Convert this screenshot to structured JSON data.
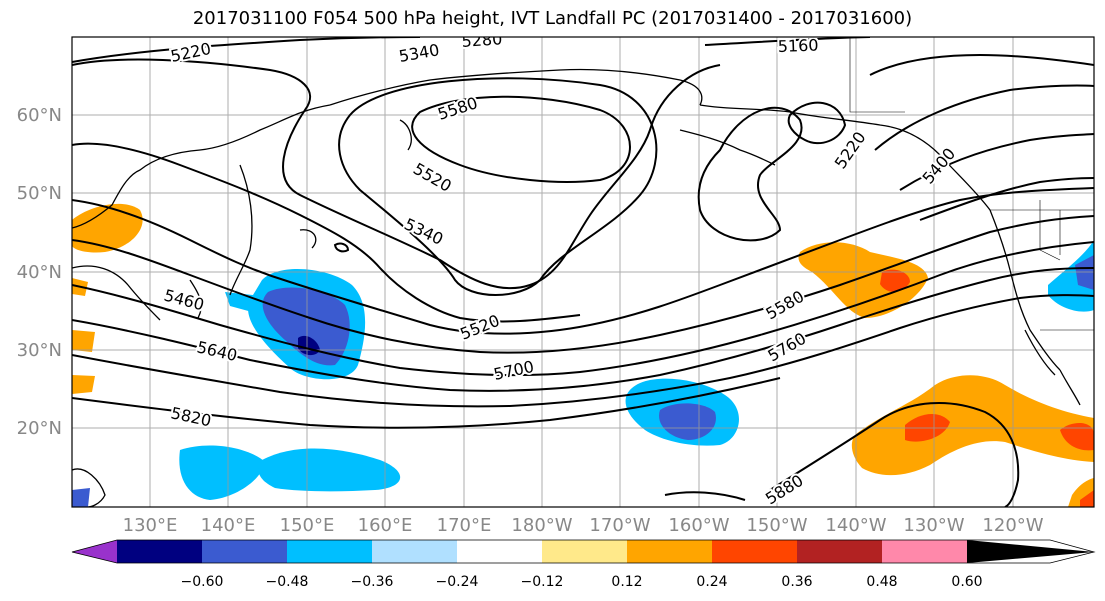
{
  "title": "2017031100 F054 500 hPa height, IVT Landfall PC (2017031400 - 2017031600)",
  "map": {
    "lat_labels": [
      "60°N",
      "50°N",
      "40°N",
      "30°N",
      "20°N"
    ],
    "lon_labels": [
      "130°E",
      "140°E",
      "150°E",
      "160°E",
      "170°E",
      "180°W",
      "170°W",
      "160°W",
      "150°W",
      "140°W",
      "130°W",
      "120°W"
    ],
    "contour_labels": [
      "5220",
      "5280",
      "5340",
      "5580",
      "5520",
      "5160",
      "5340",
      "5460",
      "5640",
      "5520",
      "5700",
      "5580",
      "5760",
      "5820",
      "5880",
      "5220",
      "5400"
    ]
  },
  "colorbar": {
    "ticks": [
      "−0.60",
      "−0.48",
      "−0.36",
      "−0.24",
      "−0.12",
      "0.12",
      "0.24",
      "0.36",
      "0.48",
      "0.60"
    ],
    "colors": [
      "#9932cc",
      "#000080",
      "#3b5bd0",
      "#00bfff",
      "#b0e0ff",
      "#ffffff",
      "#ffe98a",
      "#ffa500",
      "#ff4500",
      "#b22222",
      "#ff88aa"
    ]
  }
}
